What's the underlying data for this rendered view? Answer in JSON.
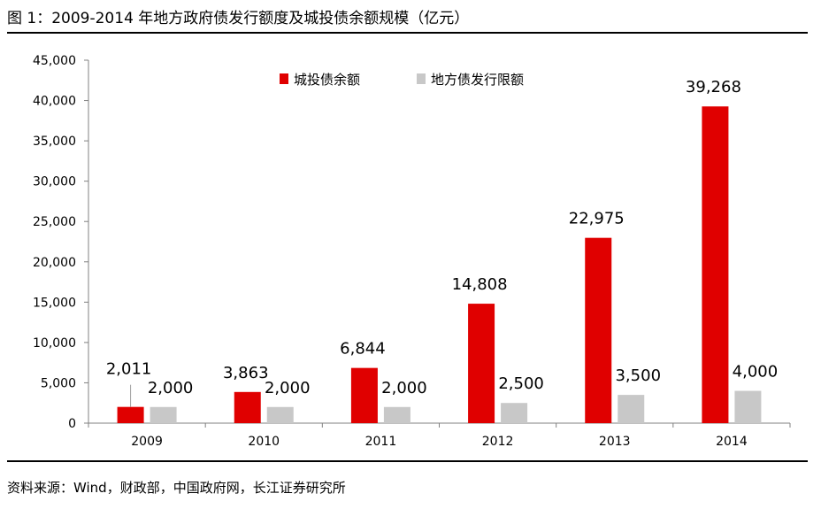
{
  "figure_title": "图 1：2009-2014 年地方政府债发行额度及城投债余额规模（亿元）",
  "source_note": "资料来源：Wind，财政部，中国政府网，长江证券研究所",
  "chart_data": {
    "type": "bar",
    "categories": [
      "2009",
      "2010",
      "2011",
      "2012",
      "2013",
      "2014"
    ],
    "series": [
      {
        "name": "城投债余额",
        "values": [
          2011,
          3863,
          6844,
          14808,
          22975,
          39268
        ],
        "labels": [
          "2,011",
          "3,863",
          "6,844",
          "14,808",
          "22,975",
          "39,268"
        ],
        "color": "#E00000"
      },
      {
        "name": "地方债发行限额",
        "values": [
          2000,
          2000,
          2000,
          2500,
          3500,
          4000
        ],
        "labels": [
          "2,000",
          "2,000",
          "2,000",
          "2,500",
          "3,500",
          "4,000"
        ],
        "color": "#C8C8C8"
      }
    ],
    "ylim": [
      0,
      45000
    ],
    "yticks": [
      0,
      5000,
      10000,
      15000,
      20000,
      25000,
      30000,
      35000,
      40000,
      45000
    ],
    "ytick_labels": [
      "0",
      "5,000",
      "10,000",
      "15,000",
      "20,000",
      "25,000",
      "30,000",
      "35,000",
      "40,000",
      "45,000"
    ],
    "grid": false,
    "legend": "top-center"
  }
}
